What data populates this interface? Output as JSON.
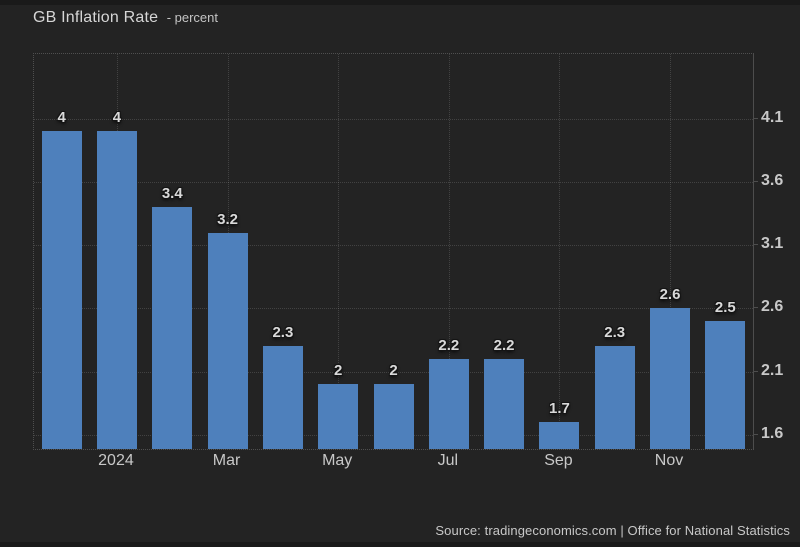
{
  "header": {
    "title": "GB Inflation Rate",
    "subtitle": "- percent"
  },
  "footer": {
    "source": "Source: tradingeconomics.com | Office for National Statistics"
  },
  "colors": {
    "background": "#232323",
    "edge_strip": "#1a1a1a",
    "bar": "#4e80bc",
    "grid": "rgba(255,255,255,0.14)",
    "grid_border": "rgba(255,255,255,0.20)",
    "axis_line": "#4d4d4d",
    "tick_text": "#c8c8c8",
    "title_text": "#d6d6d6",
    "value_label_text": "#d9d9d9"
  },
  "chart_data": {
    "type": "bar",
    "title": "GB Inflation Rate",
    "ylabel": "percent",
    "values": [
      4,
      4,
      3.4,
      3.2,
      2.3,
      2,
      2,
      2.2,
      2.2,
      1.7,
      2.3,
      2.6,
      2.5
    ],
    "bar_value_labels": [
      "4",
      "4",
      "3.4",
      "3.2",
      "2.3",
      "2",
      "2",
      "2.2",
      "2.2",
      "1.7",
      "2.3",
      "2.6",
      "2.5"
    ],
    "x_ticks": [
      {
        "bar_index": 1,
        "label": "2024"
      },
      {
        "bar_index": 3,
        "label": "Mar"
      },
      {
        "bar_index": 5,
        "label": "May"
      },
      {
        "bar_index": 7,
        "label": "Jul"
      },
      {
        "bar_index": 9,
        "label": "Sep"
      },
      {
        "bar_index": 11,
        "label": "Nov"
      }
    ],
    "y_ticks": [
      4.1,
      3.6,
      3.1,
      2.6,
      2.1,
      1.6
    ],
    "ylim": [
      1.49,
      4.61
    ],
    "grid": "dotted",
    "legend": "none",
    "y_axis_side": "right"
  }
}
